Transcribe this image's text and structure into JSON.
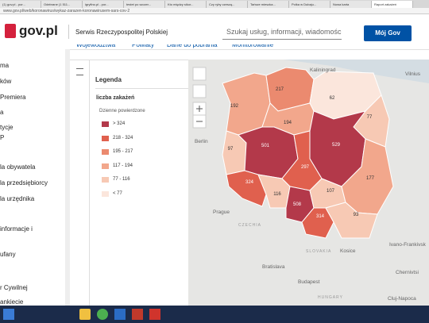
{
  "browser": {
    "tabs": [
      "(1) gov.pl - por...",
      "Odebrane (1 511...",
      "igryfino.pl - por...",
      "testet po szczer...",
      "Kto między sikor...",
      "Czy ryby czeszą...",
      "Tańsze mieszka...",
      "Polka w Dubaju...",
      "Nowa karta",
      "Raport zakażeń"
    ],
    "url": "www.gov.pl/web/koronawirus/wykaz-zarazen-koronawirusem-sars-cov-2"
  },
  "header": {
    "logo": "gov.pl",
    "service": "Serwis Rzeczypospolitej Polskiej",
    "search_placeholder": "Szukaj usług, informacji, wiadomości",
    "account_button": "Mój Gov"
  },
  "page_tabs": [
    "Województwa",
    "Powiaty",
    "Dane do pobrania",
    "Monitorowanie"
  ],
  "sidebar": [
    "ma",
    "ków",
    "Premiera",
    "a",
    "tycje",
    "P",
    "la obywatela",
    "la przedsiębiorcy",
    "la urzędnika",
    "informacje i",
    "ufany",
    "r Cywilnej",
    "ankiecie"
  ],
  "legend": {
    "title": "Legenda",
    "heading": "liczba zakażeń",
    "subheading": "Dzienne powierdzone",
    "items": [
      "> 324",
      "218 - 324",
      "195 - 217",
      "117 - 194",
      "77 - 116",
      "< 77"
    ]
  },
  "map": {
    "regions": [
      192,
      217,
      62,
      77,
      194,
      97,
      501,
      529,
      297,
      324,
      116,
      508,
      107,
      177,
      314,
      93
    ],
    "places": [
      "Kaliningrad",
      "Vilnius",
      "Berlin",
      "Prague",
      "CZECHIA",
      "SLOVAKIA",
      "Kosice",
      "Bratislava",
      "Budapest",
      "HUNGARY",
      "Ivano-Frankivsk",
      "Chernivtsi",
      "Cluj-Napoca"
    ]
  }
}
